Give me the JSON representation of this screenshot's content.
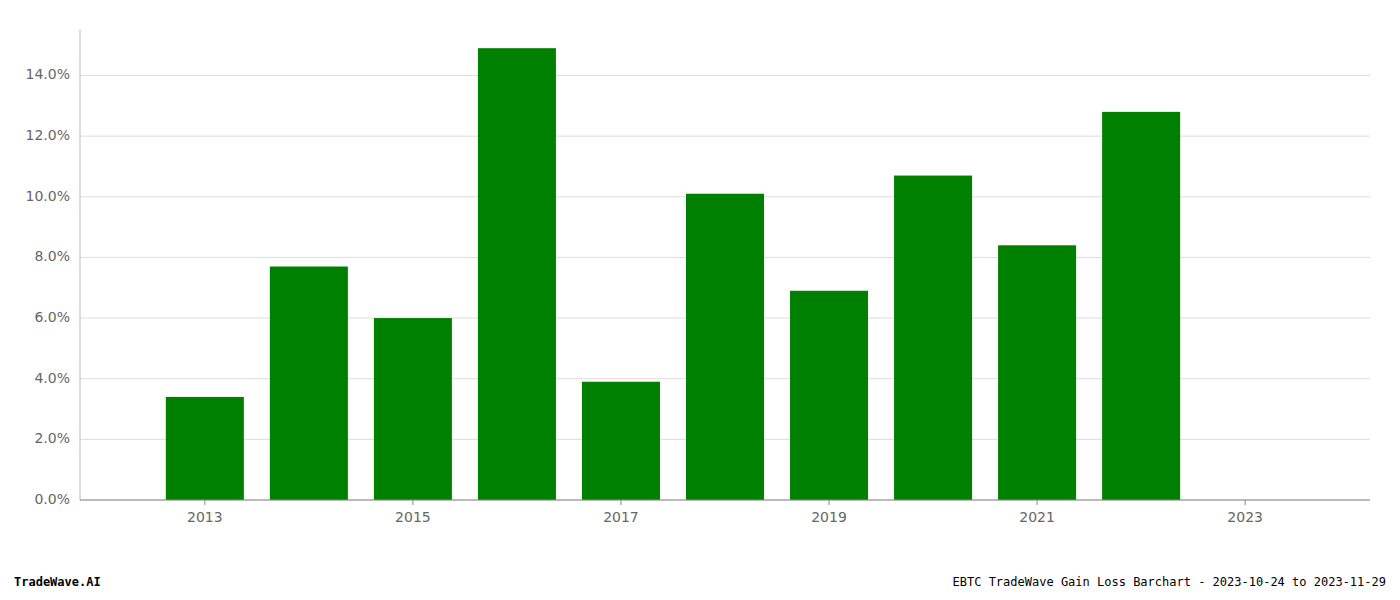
{
  "chart_data": {
    "type": "bar",
    "x": [
      2013,
      2014,
      2015,
      2016,
      2017,
      2018,
      2019,
      2020,
      2021,
      2022,
      2023
    ],
    "values": [
      0.034,
      0.077,
      0.06,
      0.149,
      0.039,
      0.101,
      0.069,
      0.107,
      0.084,
      0.128,
      null
    ],
    "color": "#008000",
    "xlim": [
      2011.8,
      2024.2
    ],
    "xticks": [
      2013,
      2015,
      2017,
      2019,
      2021,
      2023
    ],
    "ylim": [
      0,
      0.155
    ],
    "yticks": [
      {
        "value": 0.0,
        "label": "0.0%"
      },
      {
        "value": 0.02,
        "label": "2.0%"
      },
      {
        "value": 0.04,
        "label": "4.0%"
      },
      {
        "value": 0.06,
        "label": "6.0%"
      },
      {
        "value": 0.08,
        "label": "8.0%"
      },
      {
        "value": 0.1,
        "label": "10.0%"
      },
      {
        "value": 0.12,
        "label": "12.0%"
      },
      {
        "value": 0.14,
        "label": "14.0%"
      }
    ],
    "grid": true,
    "annotations": [
      "TradeWave.AI",
      "EBTC TradeWave Gain Loss Barchart - 2023-10-24 to 2023-11-29"
    ]
  }
}
